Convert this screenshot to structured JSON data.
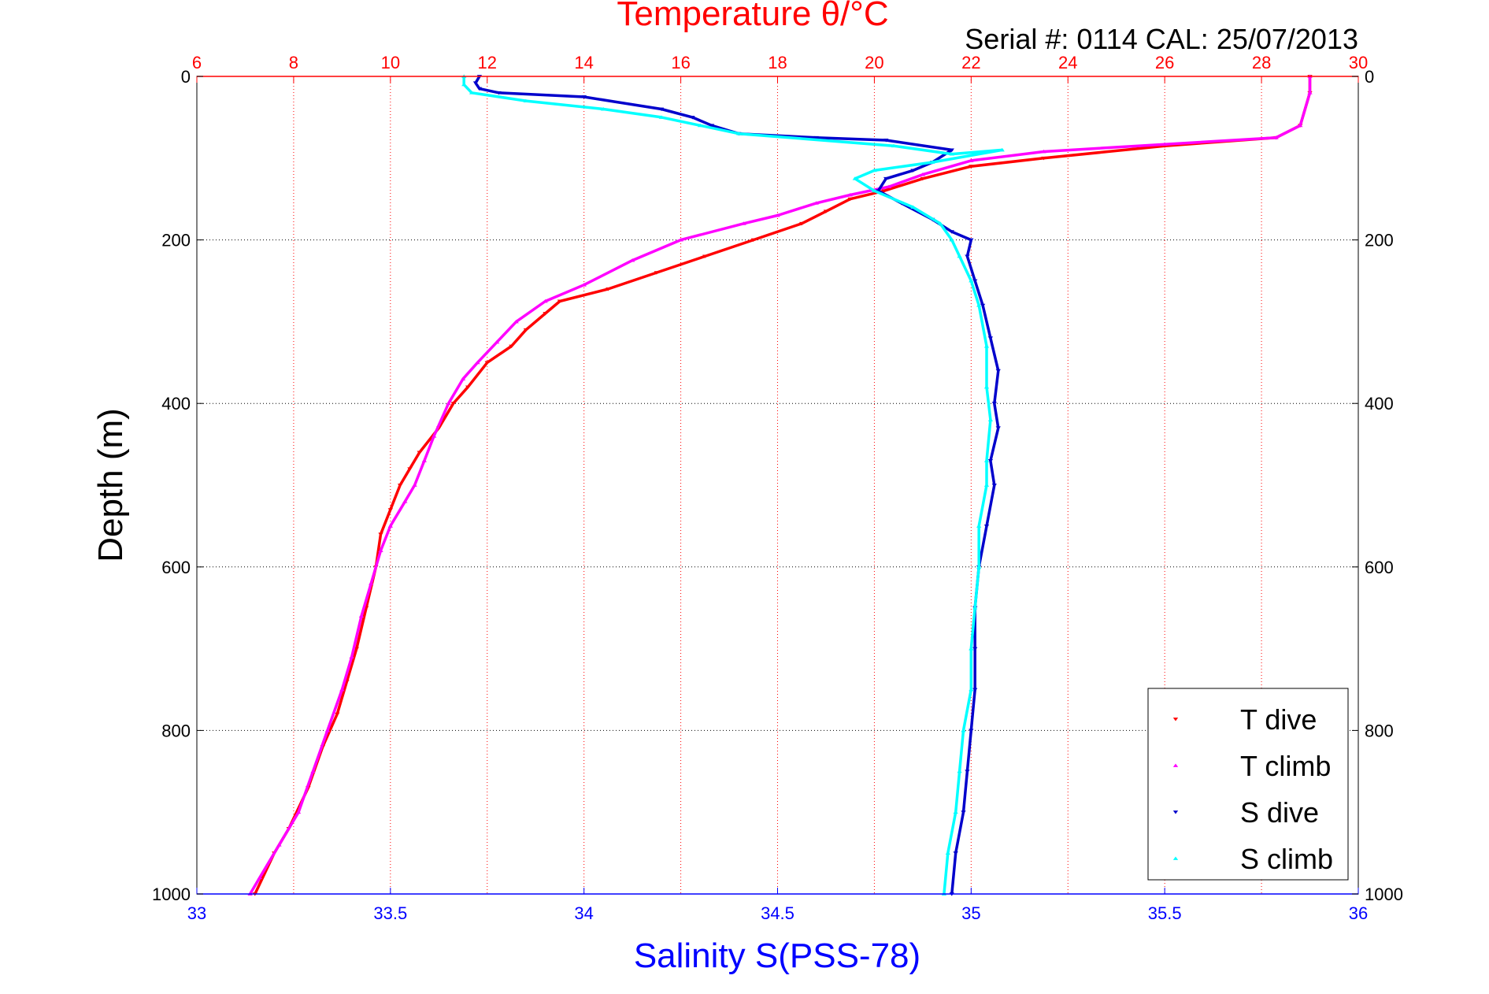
{
  "chart_data": {
    "type": "scatter",
    "title": "Temperature θ/°C",
    "subtitle": "Serial #: 0114  CAL: 25/07/2013",
    "ylabel": "Depth (m)",
    "xlabel": "Salinity S(PSS-78)",
    "grid": true,
    "legend_position": "bottom-right",
    "colors": {
      "t_dive": "#ff0000",
      "t_climb": "#ff00ff",
      "s_dive": "#0000cc",
      "s_climb": "#00ffff",
      "temp_axis": "#ff0000",
      "salinity_axis": "#0000ff"
    },
    "depth_axis": {
      "range": [
        0,
        1000
      ],
      "reversed": true,
      "ticks": [
        "0",
        "200",
        "400",
        "600",
        "800",
        "1000"
      ],
      "tick_values": [
        0,
        200,
        400,
        600,
        800,
        1000
      ]
    },
    "temperature_axis": {
      "position": "top",
      "range": [
        6,
        30
      ],
      "ticks": [
        "6",
        "8",
        "10",
        "12",
        "14",
        "16",
        "18",
        "20",
        "22",
        "24",
        "26",
        "28",
        "30"
      ],
      "tick_values": [
        6,
        8,
        10,
        12,
        14,
        16,
        18,
        20,
        22,
        24,
        26,
        28,
        30
      ]
    },
    "salinity_axis": {
      "position": "bottom",
      "range": [
        33,
        36
      ],
      "ticks": [
        "33",
        "33.5",
        "34",
        "34.5",
        "35",
        "35.5",
        "36"
      ],
      "tick_values": [
        33,
        33.5,
        34,
        34.5,
        35,
        35.5,
        36
      ]
    },
    "series": [
      {
        "name": "T dive",
        "axis": "temperature",
        "marker": "triangle-down",
        "points": [
          [
            29.0,
            0
          ],
          [
            29.0,
            20
          ],
          [
            28.8,
            60
          ],
          [
            28.3,
            75
          ],
          [
            26.0,
            85
          ],
          [
            23.5,
            100
          ],
          [
            22.0,
            110
          ],
          [
            21.0,
            125
          ],
          [
            20.2,
            140
          ],
          [
            19.5,
            150
          ],
          [
            19.0,
            165
          ],
          [
            18.5,
            180
          ],
          [
            17.5,
            200
          ],
          [
            16.5,
            220
          ],
          [
            15.5,
            240
          ],
          [
            14.5,
            260
          ],
          [
            13.5,
            275
          ],
          [
            13.2,
            290
          ],
          [
            12.8,
            310
          ],
          [
            12.5,
            330
          ],
          [
            12.0,
            350
          ],
          [
            11.6,
            380
          ],
          [
            11.3,
            400
          ],
          [
            11.0,
            430
          ],
          [
            10.6,
            460
          ],
          [
            10.4,
            480
          ],
          [
            10.2,
            500
          ],
          [
            10.0,
            530
          ],
          [
            9.8,
            560
          ],
          [
            9.7,
            600
          ],
          [
            9.5,
            650
          ],
          [
            9.3,
            700
          ],
          [
            9.1,
            740
          ],
          [
            8.9,
            780
          ],
          [
            8.6,
            820
          ],
          [
            8.3,
            870
          ],
          [
            7.9,
            920
          ],
          [
            7.6,
            950
          ],
          [
            7.2,
            1000
          ]
        ]
      },
      {
        "name": "T climb",
        "axis": "temperature",
        "marker": "triangle-up",
        "points": [
          [
            29.0,
            0
          ],
          [
            29.0,
            20
          ],
          [
            28.8,
            60
          ],
          [
            28.3,
            75
          ],
          [
            26.0,
            83
          ],
          [
            23.5,
            92
          ],
          [
            22.0,
            103
          ],
          [
            21.0,
            120
          ],
          [
            20.3,
            135
          ],
          [
            19.5,
            145
          ],
          [
            18.8,
            155
          ],
          [
            18.0,
            170
          ],
          [
            17.3,
            180
          ],
          [
            16.0,
            200
          ],
          [
            15.0,
            225
          ],
          [
            14.0,
            255
          ],
          [
            13.2,
            275
          ],
          [
            12.6,
            300
          ],
          [
            12.2,
            325
          ],
          [
            11.8,
            350
          ],
          [
            11.5,
            370
          ],
          [
            11.2,
            400
          ],
          [
            10.9,
            440
          ],
          [
            10.7,
            470
          ],
          [
            10.5,
            500
          ],
          [
            10.3,
            520
          ],
          [
            10.0,
            550
          ],
          [
            9.8,
            580
          ],
          [
            9.6,
            620
          ],
          [
            9.4,
            660
          ],
          [
            9.2,
            710
          ],
          [
            9.0,
            750
          ],
          [
            8.7,
            800
          ],
          [
            8.4,
            850
          ],
          [
            8.1,
            900
          ],
          [
            7.7,
            940
          ],
          [
            7.3,
            980
          ],
          [
            7.1,
            1000
          ]
        ]
      },
      {
        "name": "S dive",
        "axis": "salinity",
        "marker": "triangle-down",
        "points": [
          [
            33.73,
            0
          ],
          [
            33.72,
            8
          ],
          [
            33.73,
            15
          ],
          [
            33.78,
            20
          ],
          [
            34.0,
            25
          ],
          [
            34.2,
            40
          ],
          [
            34.28,
            50
          ],
          [
            34.33,
            60
          ],
          [
            34.4,
            70
          ],
          [
            34.6,
            75
          ],
          [
            34.78,
            78
          ],
          [
            34.95,
            90
          ],
          [
            34.9,
            105
          ],
          [
            34.85,
            115
          ],
          [
            34.78,
            125
          ],
          [
            34.76,
            140
          ],
          [
            34.82,
            155
          ],
          [
            34.9,
            175
          ],
          [
            34.95,
            190
          ],
          [
            35.0,
            200
          ],
          [
            34.99,
            220
          ],
          [
            35.01,
            250
          ],
          [
            35.03,
            280
          ],
          [
            35.05,
            320
          ],
          [
            35.07,
            360
          ],
          [
            35.06,
            400
          ],
          [
            35.07,
            430
          ],
          [
            35.05,
            470
          ],
          [
            35.06,
            500
          ],
          [
            35.04,
            550
          ],
          [
            35.02,
            600
          ],
          [
            35.01,
            650
          ],
          [
            35.01,
            700
          ],
          [
            35.01,
            750
          ],
          [
            35.0,
            800
          ],
          [
            34.99,
            850
          ],
          [
            34.98,
            900
          ],
          [
            34.96,
            950
          ],
          [
            34.95,
            1000
          ]
        ]
      },
      {
        "name": "S climb",
        "axis": "salinity",
        "marker": "triangle-up",
        "points": [
          [
            33.69,
            0
          ],
          [
            33.69,
            10
          ],
          [
            33.71,
            20
          ],
          [
            33.85,
            30
          ],
          [
            34.05,
            40
          ],
          [
            34.2,
            50
          ],
          [
            34.3,
            60
          ],
          [
            34.4,
            70
          ],
          [
            34.8,
            85
          ],
          [
            34.95,
            95
          ],
          [
            35.08,
            90
          ],
          [
            34.9,
            105
          ],
          [
            34.75,
            115
          ],
          [
            34.7,
            125
          ],
          [
            34.75,
            140
          ],
          [
            34.85,
            160
          ],
          [
            34.92,
            180
          ],
          [
            34.95,
            200
          ],
          [
            34.97,
            220
          ],
          [
            35.0,
            250
          ],
          [
            35.02,
            280
          ],
          [
            35.04,
            330
          ],
          [
            35.04,
            380
          ],
          [
            35.05,
            420
          ],
          [
            35.04,
            470
          ],
          [
            35.04,
            500
          ],
          [
            35.02,
            550
          ],
          [
            35.02,
            600
          ],
          [
            35.01,
            650
          ],
          [
            35.0,
            700
          ],
          [
            35.0,
            750
          ],
          [
            34.98,
            800
          ],
          [
            34.97,
            850
          ],
          [
            34.96,
            900
          ],
          [
            34.94,
            950
          ],
          [
            34.93,
            1000
          ]
        ]
      }
    ],
    "legend": [
      {
        "label": "T dive",
        "key": "t_dive",
        "marker": "triangle-down"
      },
      {
        "label": "T climb",
        "key": "t_climb",
        "marker": "triangle-up"
      },
      {
        "label": "S dive",
        "key": "s_dive",
        "marker": "triangle-down"
      },
      {
        "label": "S climb",
        "key": "s_climb",
        "marker": "triangle-up"
      }
    ]
  }
}
